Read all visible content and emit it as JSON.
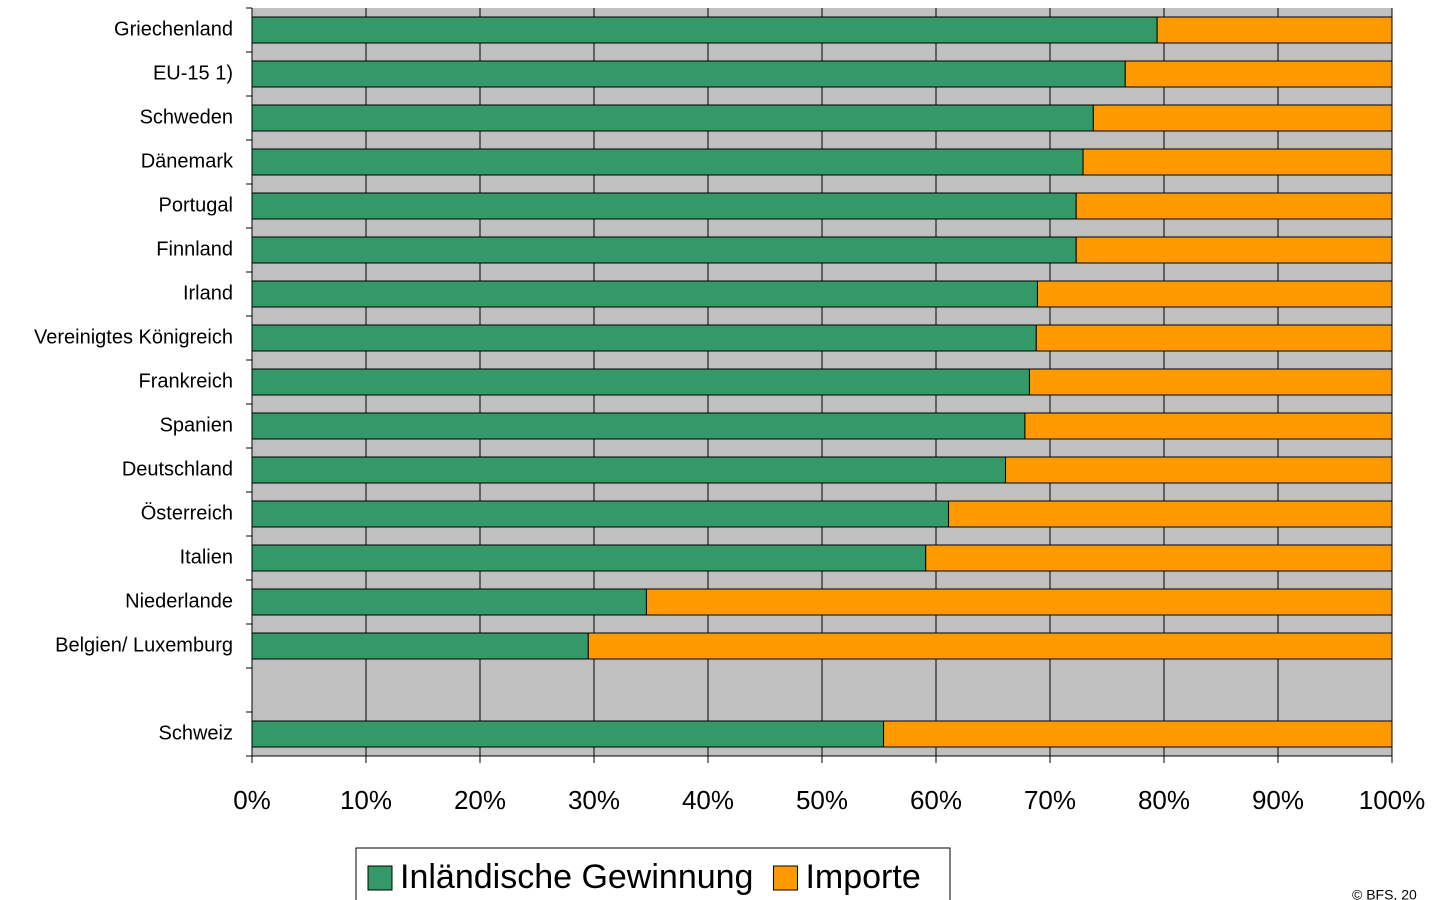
{
  "chart_data": {
    "type": "stacked-bar-horizontal",
    "categories": [
      "Griechenland",
      "EU-15 1)",
      "Schweden",
      "Dänemark",
      "Portugal",
      "Finnland",
      "Irland",
      "Vereinigtes Königreich",
      "Frankreich",
      "Spanien",
      "Deutschland",
      "Österreich",
      "Italien",
      "Niederlande",
      "Belgien/ Luxemburg",
      null,
      "Schweiz"
    ],
    "series": [
      {
        "name": "Inländische Gewinnung",
        "color": "#339966",
        "values": [
          79.4,
          76.6,
          73.8,
          72.9,
          72.3,
          72.3,
          68.9,
          68.8,
          68.2,
          67.8,
          66.1,
          61.1,
          59.1,
          34.6,
          29.5,
          null,
          55.4
        ]
      },
      {
        "name": "Importe",
        "color": "#ff9900",
        "values": [
          20.6,
          23.4,
          26.2,
          27.1,
          27.7,
          27.7,
          31.1,
          31.2,
          31.8,
          32.2,
          33.9,
          38.9,
          40.9,
          65.4,
          70.5,
          null,
          44.6
        ]
      }
    ],
    "xlim": [
      0,
      100
    ],
    "xticks": [
      {
        "value": 0,
        "label": "0%"
      },
      {
        "value": 10,
        "label": "10%"
      },
      {
        "value": 20,
        "label": "20%"
      },
      {
        "value": 30,
        "label": "30%"
      },
      {
        "value": 40,
        "label": "40%"
      },
      {
        "value": 50,
        "label": "50%"
      },
      {
        "value": 60,
        "label": "60%"
      },
      {
        "value": 70,
        "label": "70%"
      },
      {
        "value": 80,
        "label": "80%"
      },
      {
        "value": 90,
        "label": "90%"
      },
      {
        "value": 100,
        "label": "100%"
      }
    ],
    "grid": true,
    "background": "#c0c0c0",
    "legend_position": "bottom",
    "source": "© BFS, 20"
  }
}
